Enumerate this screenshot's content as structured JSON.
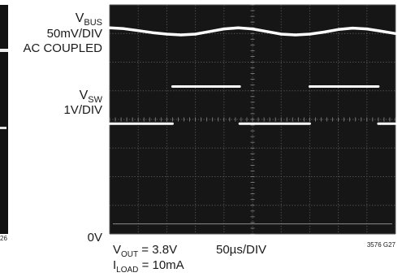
{
  "chart_data": {
    "type": "line",
    "title": "",
    "xlabel": "",
    "ylabel": "",
    "grid": true,
    "x_unit_per_division": "50µs",
    "x_divisions": 10,
    "y_divisions": 8,
    "channel_labels": [
      {
        "main": "V",
        "sub": "BUS",
        "lines": [
          "50mV/DIV",
          "AC COUPLED"
        ]
      },
      {
        "main": "V",
        "sub": "SW",
        "lines": [
          "1V/DIV"
        ]
      }
    ],
    "ground_label": "0V",
    "series": [
      {
        "name": "VBUS",
        "x_div": [
          0,
          0.5,
          1,
          1.5,
          2,
          2.5,
          3,
          3.5,
          4,
          4.5,
          5,
          5.5,
          6,
          6.5,
          7,
          7.5,
          8,
          8.5,
          9,
          9.5,
          10
        ],
        "y_div": [
          7.2,
          7.17,
          7.1,
          7.03,
          6.98,
          6.95,
          6.98,
          7.07,
          7.16,
          7.2,
          7.16,
          7.07,
          6.98,
          6.95,
          6.98,
          7.05,
          7.14,
          7.19,
          7.16,
          7.08,
          7.0
        ]
      },
      {
        "name": "VSW",
        "segments": [
          {
            "x_div": [
              0,
              2.2
            ],
            "y_div": [
              3.85,
              3.85
            ]
          },
          {
            "x_div": [
              2.2,
              4.55
            ],
            "y_div": [
              5.15,
              5.15
            ]
          },
          {
            "x_div": [
              4.55,
              7.0
            ],
            "y_div": [
              3.85,
              3.85
            ]
          },
          {
            "x_div": [
              7.0,
              9.4
            ],
            "y_div": [
              5.15,
              5.15
            ]
          },
          {
            "x_div": [
              9.4,
              10.0
            ],
            "y_div": [
              3.85,
              3.85
            ]
          }
        ]
      }
    ]
  },
  "conditions": {
    "vout": {
      "main": "V",
      "sub": "OUT",
      "rest": " = 3.8V"
    },
    "iload": {
      "main": "I",
      "sub": "LOAD",
      "rest": " = 10mA"
    },
    "timebase": "50µs/DIV"
  },
  "figure_id": "3576 G27",
  "left_panel_fragment": {
    "figure_id_tail": "26"
  }
}
